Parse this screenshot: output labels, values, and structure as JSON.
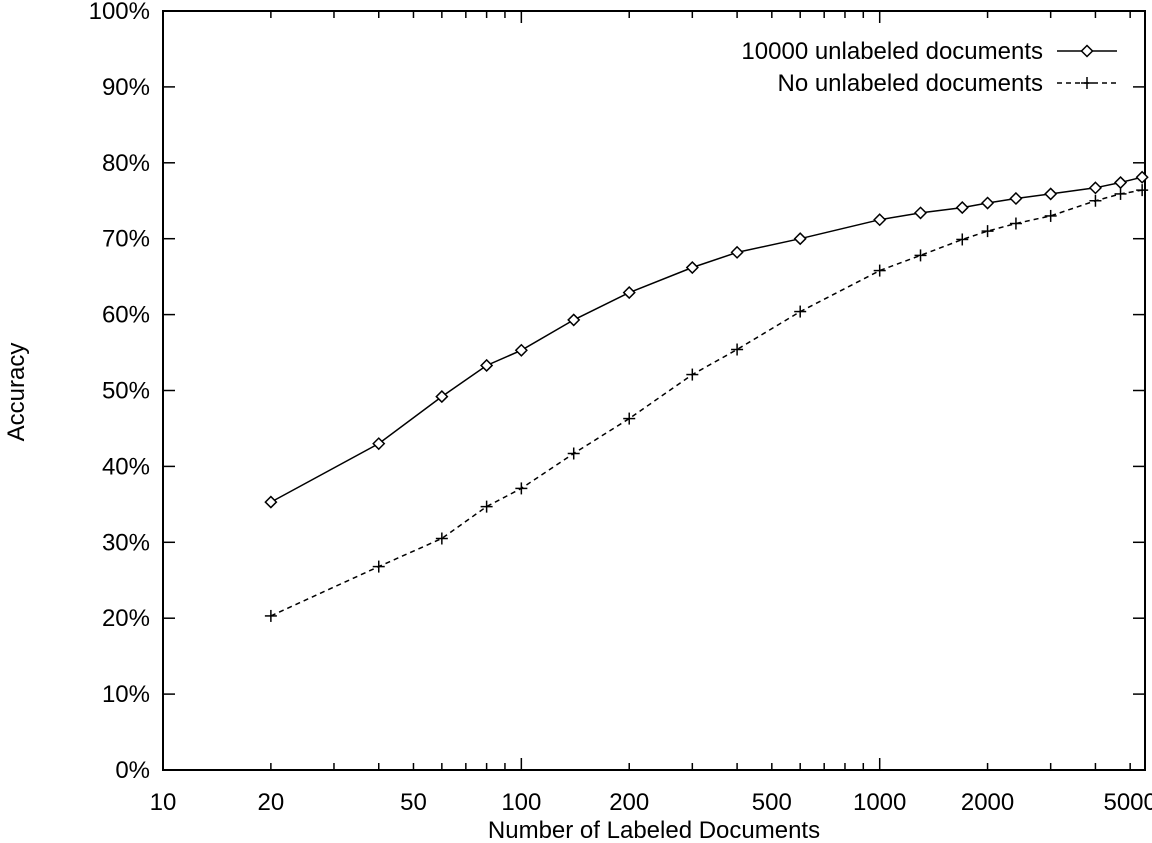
{
  "chart_data": {
    "type": "line",
    "xlabel": "Number of Labeled Documents",
    "ylabel": "Accuracy",
    "x_scale": "log",
    "xlim": [
      10,
      5500
    ],
    "ylim": [
      0,
      100
    ],
    "x_ticks": [
      {
        "value": 10,
        "label": "10"
      },
      {
        "value": 20,
        "label": "20"
      },
      {
        "value": 50,
        "label": "50"
      },
      {
        "value": 100,
        "label": "100"
      },
      {
        "value": 200,
        "label": "200"
      },
      {
        "value": 500,
        "label": "500"
      },
      {
        "value": 1000,
        "label": "1000"
      },
      {
        "value": 2000,
        "label": "2000"
      },
      {
        "value": 5000,
        "label": "5000"
      }
    ],
    "y_ticks": [
      {
        "value": 0,
        "label": "0%"
      },
      {
        "value": 10,
        "label": "10%"
      },
      {
        "value": 20,
        "label": "20%"
      },
      {
        "value": 30,
        "label": "30%"
      },
      {
        "value": 40,
        "label": "40%"
      },
      {
        "value": 50,
        "label": "50%"
      },
      {
        "value": 60,
        "label": "60%"
      },
      {
        "value": 70,
        "label": "70%"
      },
      {
        "value": 80,
        "label": "80%"
      },
      {
        "value": 90,
        "label": "90%"
      },
      {
        "value": 100,
        "label": "100%"
      }
    ],
    "grid": false,
    "legend_position": "top-right",
    "series": [
      {
        "name": "10000 unlabeled documents",
        "marker": "diamond",
        "line_style": "solid",
        "color": "#000000",
        "x": [
          20,
          40,
          60,
          80,
          100,
          140,
          200,
          300,
          400,
          600,
          1000,
          1300,
          1700,
          2000,
          2400,
          3000,
          4000,
          4700,
          5400
        ],
        "y": [
          35.3,
          43.0,
          49.2,
          53.3,
          55.3,
          59.3,
          62.9,
          66.2,
          68.2,
          70.0,
          72.5,
          73.4,
          74.1,
          74.7,
          75.3,
          75.9,
          76.7,
          77.4,
          78.1
        ]
      },
      {
        "name": "No unlabeled documents",
        "marker": "plus",
        "line_style": "dashed",
        "color": "#000000",
        "x": [
          20,
          40,
          60,
          80,
          100,
          140,
          200,
          300,
          400,
          600,
          1000,
          1300,
          1700,
          2000,
          2400,
          3000,
          4000,
          4700,
          5400
        ],
        "y": [
          20.3,
          26.8,
          30.5,
          34.7,
          37.1,
          41.7,
          46.3,
          52.1,
          55.4,
          60.4,
          65.8,
          67.8,
          69.9,
          71.0,
          72.0,
          73.0,
          75.0,
          75.9,
          76.4
        ]
      }
    ]
  }
}
